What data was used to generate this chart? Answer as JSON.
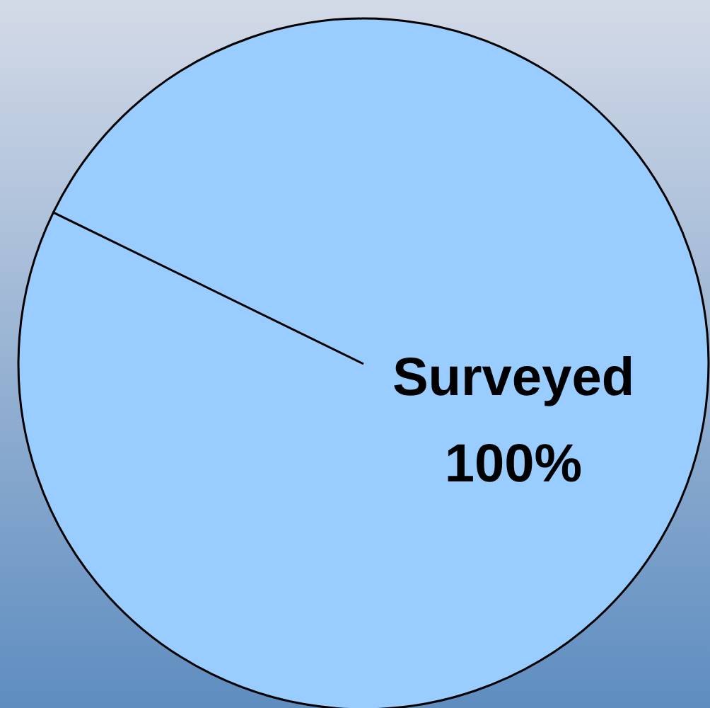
{
  "chart_data": {
    "type": "pie",
    "categories": [
      "Surveyed"
    ],
    "values": [
      100
    ],
    "colors": [
      "#99ccff"
    ],
    "value_labels": [
      "100%"
    ]
  }
}
